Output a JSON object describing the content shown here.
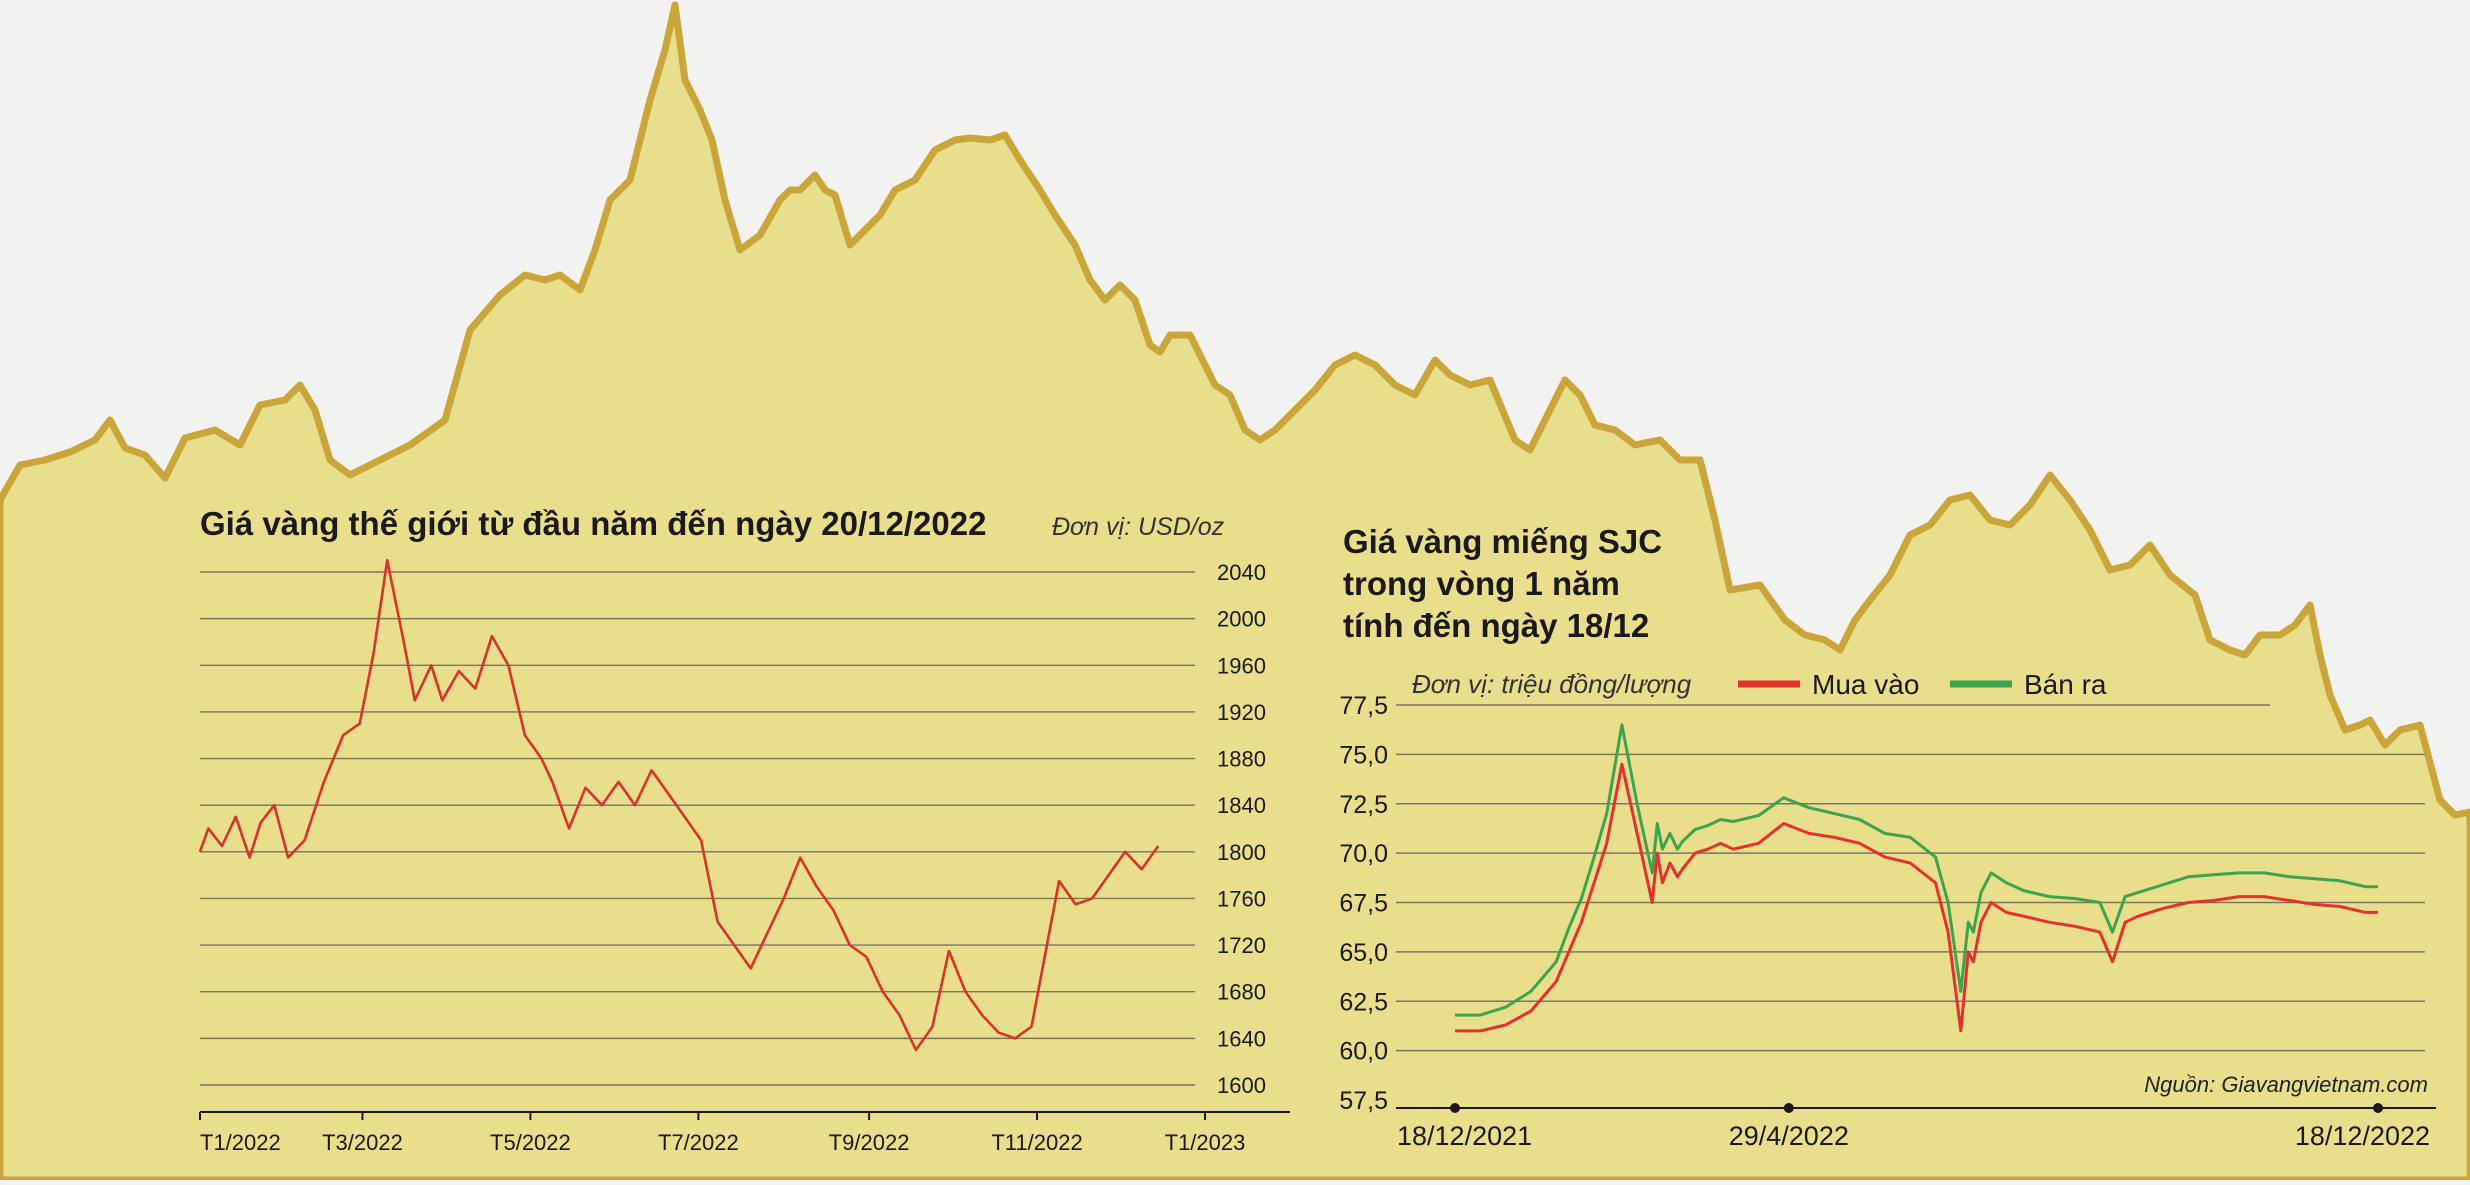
{
  "colors": {
    "background": "#e8de8c",
    "mountain_stroke": "#c9a53a",
    "page_top": "#f2f2f0",
    "world_line": "#d83328",
    "buy_line": "#e2322b",
    "sell_line": "#3fa34d",
    "grid": "#7a7460",
    "text": "#1a1a1a"
  },
  "chart_data": [
    {
      "type": "line",
      "title": "Giá vàng thế giới từ đầu năm đến ngày 20/12/2022",
      "unit_label": "Đơn vị: USD/oz",
      "ylim": [
        1600,
        2040
      ],
      "yticks": [
        "2040",
        "2000",
        "1960",
        "1920",
        "1880",
        "1840",
        "1800",
        "1760",
        "1720",
        "1680",
        "1640",
        "1600"
      ],
      "xticks": [
        "T1/2022",
        "T3/2022",
        "T5/2022",
        "T7/2022",
        "T9/2022",
        "T11/2022",
        "T1/2023"
      ],
      "xlim_days": [
        0,
        365
      ],
      "xtick_days": [
        0,
        59,
        120,
        181,
        243,
        304,
        365
      ],
      "series": [
        {
          "name": "Giá vàng thế giới",
          "x_days": [
            0,
            3,
            8,
            13,
            18,
            22,
            27,
            32,
            38,
            45,
            52,
            58,
            63,
            68,
            74,
            78,
            84,
            88,
            94,
            100,
            106,
            112,
            118,
            124,
            128,
            134,
            140,
            146,
            152,
            158,
            164,
            170,
            176,
            182,
            188,
            194,
            200,
            206,
            212,
            218,
            224,
            230,
            236,
            242,
            248,
            254,
            260,
            266,
            272,
            278,
            284,
            290,
            296,
            302,
            306,
            312,
            318,
            324,
            330,
            336,
            342,
            348
          ],
          "values": [
            1800,
            1820,
            1805,
            1830,
            1795,
            1825,
            1840,
            1795,
            1810,
            1860,
            1900,
            1910,
            1970,
            2050,
            1980,
            1930,
            1960,
            1930,
            1955,
            1940,
            1985,
            1960,
            1900,
            1880,
            1860,
            1820,
            1855,
            1840,
            1860,
            1840,
            1870,
            1850,
            1830,
            1810,
            1740,
            1720,
            1700,
            1730,
            1760,
            1795,
            1770,
            1750,
            1720,
            1710,
            1680,
            1660,
            1630,
            1650,
            1715,
            1680,
            1660,
            1645,
            1640,
            1650,
            1700,
            1775,
            1755,
            1760,
            1780,
            1800,
            1785,
            1805
          ]
        }
      ]
    },
    {
      "type": "line",
      "title_lines": [
        "Giá vàng miếng SJC",
        "trong vòng 1 năm",
        "tính đến ngày 18/12"
      ],
      "unit_label": "Đơn vị: triệu đồng/lượng",
      "ylim": [
        57.5,
        77.5
      ],
      "yticks": [
        "77,5",
        "75,0",
        "72,5",
        "70,0",
        "67,5",
        "65,0",
        "62,5",
        "60,0",
        "57,5"
      ],
      "xticks": [
        "18/12/2021",
        "29/4/2022",
        "18/12/2022"
      ],
      "xlim_days": [
        0,
        365
      ],
      "xtick_days": [
        0,
        132,
        365
      ],
      "series": [
        {
          "name": "Mua vào",
          "x_days": [
            0,
            10,
            20,
            30,
            40,
            45,
            50,
            55,
            60,
            66,
            72,
            78,
            80,
            82,
            85,
            88,
            90,
            95,
            100,
            105,
            110,
            120,
            130,
            140,
            150,
            160,
            170,
            180,
            190,
            195,
            200,
            203,
            205,
            208,
            212,
            218,
            225,
            235,
            245,
            255,
            260,
            265,
            270,
            280,
            290,
            300,
            310,
            320,
            330,
            340,
            350,
            360,
            365
          ],
          "values": [
            61.0,
            61.0,
            61.3,
            62.0,
            63.5,
            65.0,
            66.5,
            68.5,
            70.5,
            74.5,
            71.0,
            67.5,
            70.0,
            68.5,
            69.5,
            68.8,
            69.2,
            70.0,
            70.2,
            70.5,
            70.2,
            70.5,
            71.5,
            71.0,
            70.8,
            70.5,
            69.8,
            69.5,
            68.5,
            66.0,
            61.0,
            65.0,
            64.5,
            66.5,
            67.5,
            67.0,
            66.8,
            66.5,
            66.3,
            66.0,
            64.5,
            66.5,
            66.8,
            67.2,
            67.5,
            67.6,
            67.8,
            67.8,
            67.6,
            67.4,
            67.3,
            67.0,
            67.0
          ]
        },
        {
          "name": "Bán ra",
          "x_days": [
            0,
            10,
            20,
            30,
            40,
            45,
            50,
            55,
            60,
            66,
            72,
            78,
            80,
            82,
            85,
            88,
            90,
            95,
            100,
            105,
            110,
            120,
            130,
            140,
            150,
            160,
            170,
            180,
            190,
            195,
            200,
            203,
            205,
            208,
            212,
            218,
            225,
            235,
            245,
            255,
            260,
            265,
            270,
            280,
            290,
            300,
            310,
            320,
            330,
            340,
            350,
            360,
            365
          ],
          "values": [
            61.8,
            61.8,
            62.2,
            63.0,
            64.5,
            66.2,
            67.7,
            69.8,
            72.0,
            76.5,
            72.5,
            69.0,
            71.5,
            70.2,
            71.0,
            70.2,
            70.6,
            71.2,
            71.4,
            71.7,
            71.6,
            71.9,
            72.8,
            72.3,
            72.0,
            71.7,
            71.0,
            70.8,
            69.8,
            67.5,
            63.0,
            66.5,
            66.0,
            68.0,
            69.0,
            68.5,
            68.1,
            67.8,
            67.7,
            67.5,
            66.0,
            67.8,
            68.0,
            68.4,
            68.8,
            68.9,
            69.0,
            69.0,
            68.8,
            68.7,
            68.6,
            68.3,
            68.3
          ]
        }
      ]
    }
  ],
  "legend": {
    "buy": "Mua vào",
    "sell": "Bán ra"
  },
  "source": "Nguồn: Giavangvietnam.com"
}
